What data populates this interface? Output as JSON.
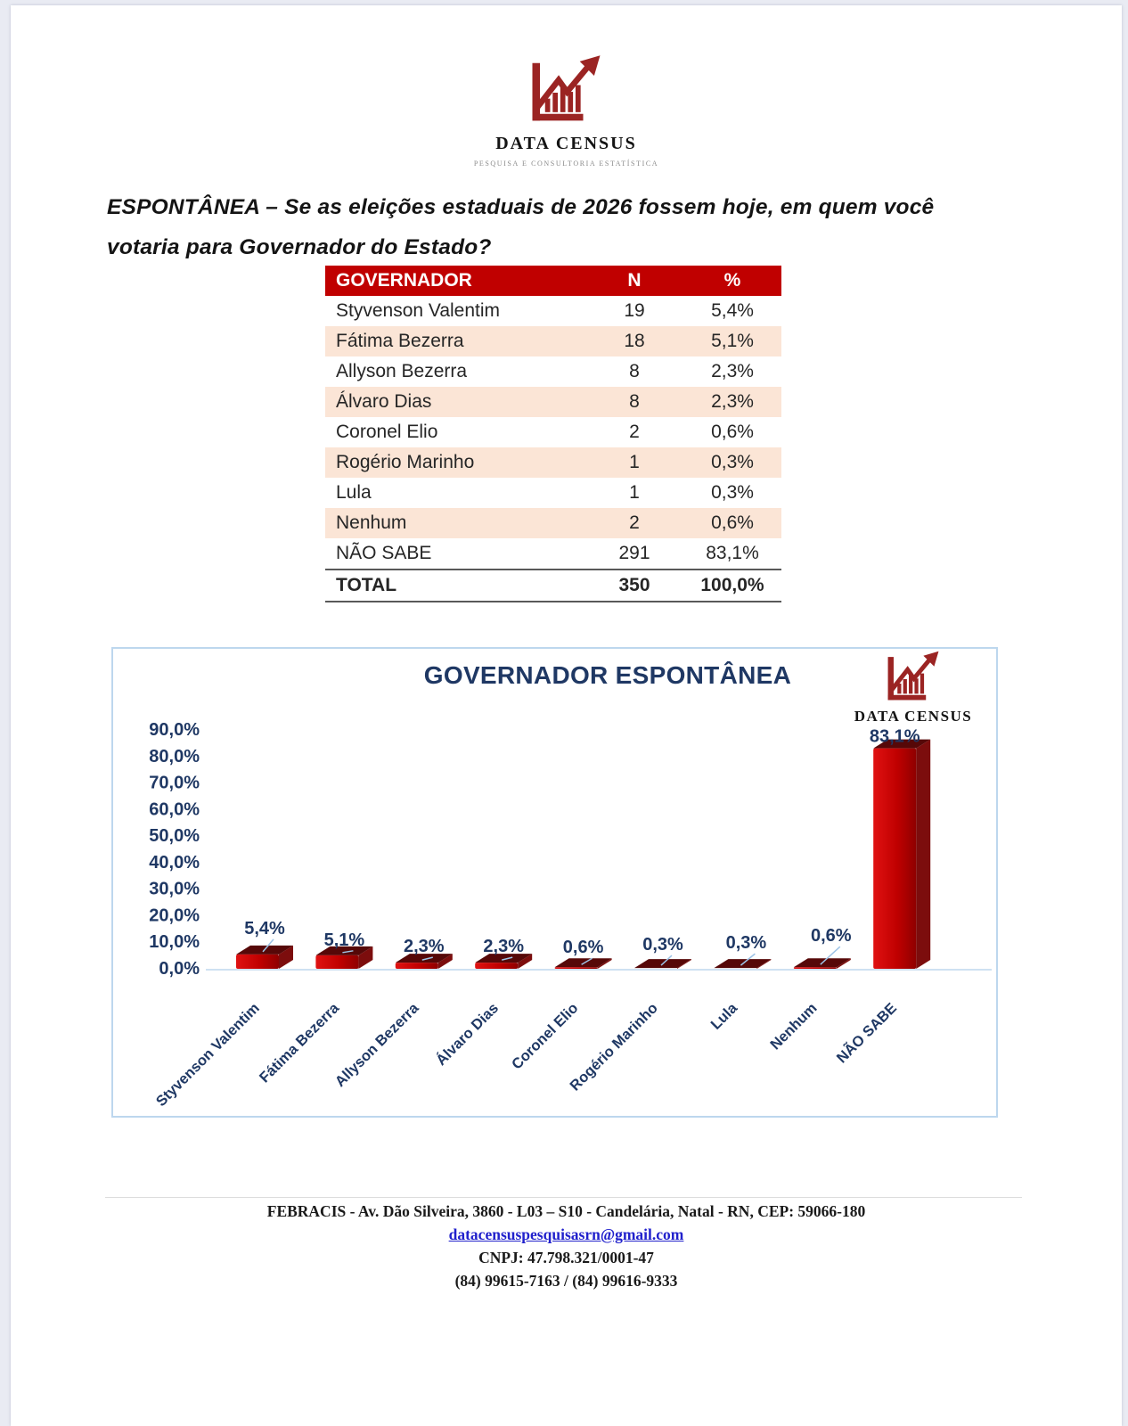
{
  "logo": {
    "title": "DATA CENSUS",
    "subtitle": "PESQUISA E CONSULTORIA ESTATÍSTICA"
  },
  "question": {
    "line1": "ESPONTÂNEA – Se as eleições estaduais de 2026 fossem hoje, em quem você",
    "line2": "votaria para Governador do Estado?"
  },
  "table": {
    "headers": [
      "GOVERNADOR",
      "N",
      "%"
    ],
    "rows": [
      [
        "Styvenson Valentim",
        "19",
        "5,4%"
      ],
      [
        "Fátima Bezerra",
        "18",
        "5,1%"
      ],
      [
        "Allyson Bezerra",
        "8",
        "2,3%"
      ],
      [
        "Álvaro Dias",
        "8",
        "2,3%"
      ],
      [
        "Coronel Elio",
        "2",
        "0,6%"
      ],
      [
        "Rogério Marinho",
        "1",
        "0,3%"
      ],
      [
        "Lula",
        "1",
        "0,3%"
      ],
      [
        "Nenhum",
        "2",
        "0,6%"
      ],
      [
        "NÃO SABE",
        "291",
        "83,1%"
      ]
    ],
    "total": [
      "TOTAL",
      "350",
      "100,0%"
    ]
  },
  "chart_data": {
    "type": "bar",
    "title": "GOVERNADOR ESPONTÂNEA",
    "categories": [
      "Styvenson Valentim",
      "Fátima Bezerra",
      "Allyson Bezerra",
      "Álvaro Dias",
      "Coronel Elio",
      "Rogério Marinho",
      "Lula",
      "Nenhum",
      "NÃO SABE"
    ],
    "values": [
      5.4,
      5.1,
      2.3,
      2.3,
      0.6,
      0.3,
      0.3,
      0.6,
      83.1
    ],
    "value_labels": [
      "5,4%",
      "5,1%",
      "2,3%",
      "2,3%",
      "0,6%",
      "0,3%",
      "0,3%",
      "0,6%",
      "83,1%"
    ],
    "ytick_labels": [
      "90,0%",
      "80,0%",
      "70,0%",
      "60,0%",
      "50,0%",
      "40,0%",
      "30,0%",
      "20,0%",
      "10,0%",
      "0,0%"
    ],
    "ylim": [
      0,
      90
    ],
    "grid": false,
    "legend": false,
    "xlabel": "",
    "ylabel": "",
    "watermark": "DATA CENSUS",
    "bar_color": "#C00000",
    "bar_top_color": "#560808",
    "bar_side_color": "#7C0D0D",
    "axis_color": "#BDD7EE",
    "leader_color": "#9DC3E6",
    "label_color": "#1F3864"
  },
  "footer": {
    "address": "FEBRACIS - Av. Dão Silveira, 3860 - L03 – S10 - Candelária, Natal - RN, CEP: 59066-180",
    "email": "datacensuspesquisasrn@gmail.com",
    "cnpj": "CNPJ: 47.798.321/0001-47",
    "phones": "(84) 99615-7163 / (84) 99616-9333"
  },
  "colors": {
    "header_red": "#C00000",
    "row_pink": "#FBE5D6",
    "navy": "#1F3864",
    "logo_maroon": "#9B2423",
    "chart_border_blue": "#BDD7EE",
    "email_blue": "#2121CC"
  }
}
